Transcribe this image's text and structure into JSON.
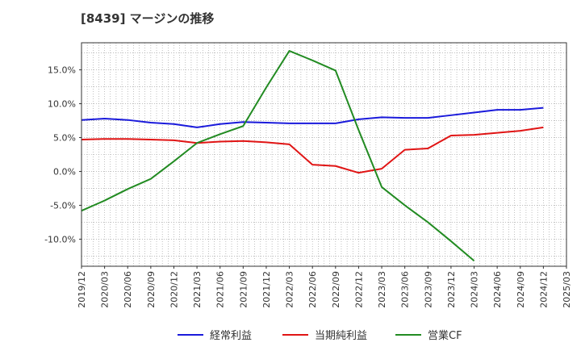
{
  "title": "[8439]  マージンの推移",
  "colors": {
    "plot_border": "#333333",
    "grid": "#999999",
    "text": "#333333",
    "series": [
      "#1a1adb",
      "#e01414",
      "#228b22"
    ]
  },
  "chart_data": {
    "type": "line",
    "title": "[8439]  マージンの推移",
    "xlabel": "",
    "ylabel": "",
    "ylim": [
      -14.0,
      19.0
    ],
    "grid": true,
    "legend_position": "bottom",
    "x_categories": [
      "2019/12",
      "2020/03",
      "2020/06",
      "2020/09",
      "2020/12",
      "2021/03",
      "2021/06",
      "2021/09",
      "2021/12",
      "2022/03",
      "2022/06",
      "2022/09",
      "2022/12",
      "2023/03",
      "2023/06",
      "2023/09",
      "2023/12",
      "2024/03",
      "2024/06",
      "2024/09",
      "2024/12",
      "2025/03"
    ],
    "y_ticks": [
      15.0,
      10.0,
      5.0,
      0.0,
      -5.0,
      -10.0
    ],
    "y_tick_labels": [
      "15.0%",
      "10.0%",
      "5.0%",
      "0.0%",
      "-5.0%",
      "-10.0%"
    ],
    "series": [
      {
        "name": "経常利益",
        "color": "#1a1adb",
        "values": [
          7.6,
          7.8,
          7.6,
          7.2,
          7.0,
          6.5,
          7.0,
          7.3,
          7.2,
          7.1,
          7.1,
          7.1,
          7.7,
          8.0,
          7.9,
          7.9,
          8.3,
          8.7,
          9.1,
          9.1,
          9.4,
          null
        ]
      },
      {
        "name": "当期純利益",
        "color": "#e01414",
        "values": [
          4.7,
          4.8,
          4.8,
          4.7,
          4.6,
          4.2,
          4.4,
          4.5,
          4.3,
          4.0,
          1.0,
          0.8,
          -0.2,
          0.4,
          3.2,
          3.4,
          5.3,
          5.4,
          5.7,
          6.0,
          6.5,
          null
        ]
      },
      {
        "name": "営業CF",
        "color": "#228b22",
        "values": [
          -5.8,
          -4.3,
          -2.6,
          -1.1,
          1.5,
          4.2,
          5.5,
          6.7,
          12.4,
          17.8,
          16.4,
          14.9,
          6.1,
          -2.3,
          -5.0,
          -7.5,
          -10.3,
          -13.2,
          null,
          null,
          null,
          null
        ]
      }
    ]
  }
}
